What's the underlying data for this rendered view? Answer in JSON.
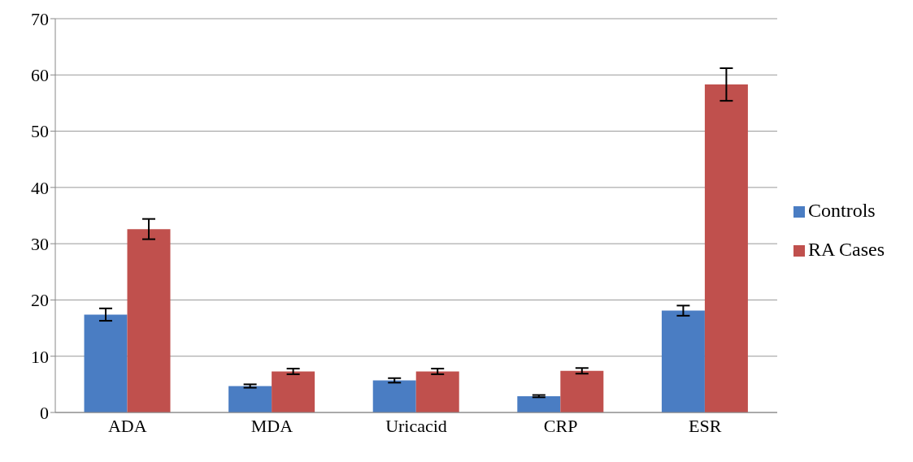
{
  "chart_data": {
    "type": "bar",
    "categories": [
      "ADA",
      "MDA",
      "Uricacid",
      "CRP",
      "ESR"
    ],
    "series": [
      {
        "name": "Controls",
        "color": "#4a7dc3",
        "values": [
          17.4,
          4.7,
          5.7,
          2.9,
          18.1
        ],
        "errors": [
          1.1,
          0.3,
          0.4,
          0.2,
          0.9
        ]
      },
      {
        "name": "RA Cases",
        "color": "#c0504d",
        "values": [
          32.6,
          7.3,
          7.3,
          7.4,
          58.3
        ],
        "errors": [
          1.8,
          0.5,
          0.5,
          0.5,
          2.9
        ]
      }
    ],
    "ylim": [
      0,
      70
    ],
    "yticks": [
      0,
      10,
      20,
      30,
      40,
      50,
      60,
      70
    ],
    "grid": "y",
    "legend": "right"
  }
}
